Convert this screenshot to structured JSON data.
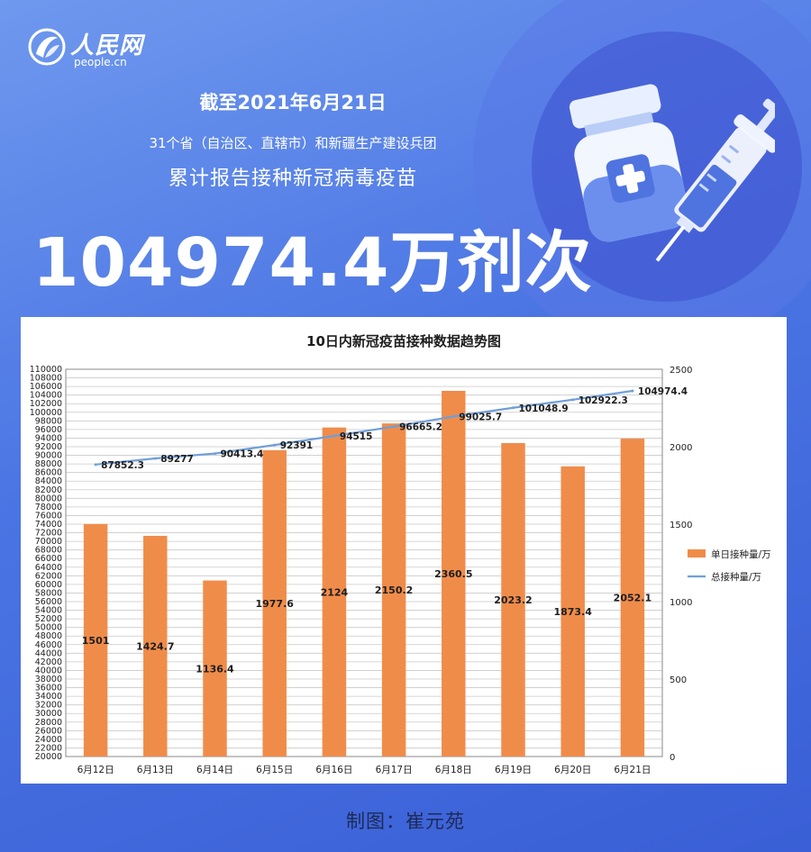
{
  "brand": {
    "name": "人民网",
    "domain": "people.cn"
  },
  "header": {
    "date_line": "截至2021年6月21日",
    "scope_line": "31个省（自治区、直辖市）和新疆生产建设兵团",
    "subject_line": "累计报告接种新冠病毒疫苗",
    "total": "104974.4万剂次"
  },
  "icons": {
    "logo": "people-daily-logo-icon",
    "illustration": "vaccine-syringe-icon"
  },
  "colors": {
    "background": "#4a74e3",
    "bar": "#f08c4a",
    "line": "#6f9fd9"
  },
  "chart_data": {
    "type": "bar",
    "title": "10日内新冠疫苗接种数据趋势图",
    "categories": [
      "6月12日",
      "6月13日",
      "6月14日",
      "6月15日",
      "6月16日",
      "6月17日",
      "6月18日",
      "6月19日",
      "6月20日",
      "6月21日"
    ],
    "series": [
      {
        "name": "单日接种量/万",
        "type": "bar",
        "axis": "right",
        "values": [
          1501,
          1424.7,
          1136.4,
          1977.6,
          2124,
          2150.2,
          2360.5,
          2023.2,
          1873.4,
          2052.1
        ],
        "labels": [
          "1501",
          "1424.7",
          "1136.4",
          "1977.6",
          "2124",
          "2150.2",
          "2360.5",
          "2023.2",
          "1873.4",
          "2052.1"
        ]
      },
      {
        "name": "总接种量/万",
        "type": "line",
        "axis": "left",
        "values": [
          87852.3,
          89277,
          90413.4,
          92391,
          94515,
          96665.2,
          99025.7,
          101048.9,
          102922.3,
          104974.4
        ],
        "labels": [
          "87852.3",
          "89277",
          "90413.4",
          "92391",
          "94515",
          "96665.2",
          "99025.7",
          "101048.9",
          "102922.3",
          "104974.4"
        ]
      }
    ],
    "y_left": {
      "min": 20000,
      "max": 110000,
      "step": 2000
    },
    "y_right": {
      "min": 0,
      "max": 2500,
      "step": 500
    },
    "grid": true,
    "legend_position": "right"
  },
  "footer": {
    "credit": "制图：崔元苑"
  }
}
